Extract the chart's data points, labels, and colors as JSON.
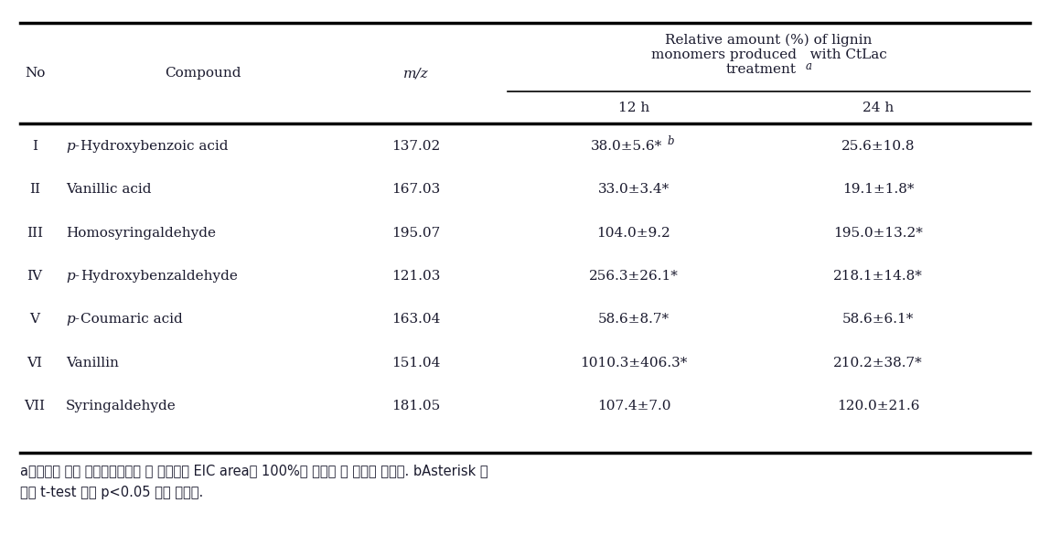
{
  "rows": [
    [
      "I",
      "p-Hydroxybenzoic acid",
      "137.02",
      "38.0±5.6*",
      "b",
      "25.6±10.8"
    ],
    [
      "II",
      "Vanillic acid",
      "167.03",
      "33.0±3.4*",
      "",
      "19.1±1.8*"
    ],
    [
      "III",
      "Homosyringaldehyde",
      "195.07",
      "104.0±9.2",
      "",
      "195.0±13.2*"
    ],
    [
      "IV",
      "p-Hydroxybenzaldehyde",
      "121.03",
      "256.3±26.1*",
      "",
      "218.1±14.8*"
    ],
    [
      "V",
      "p-Coumaric acid",
      "163.04",
      "58.6±8.7*",
      "",
      "58.6±6.1*"
    ],
    [
      "VI",
      "Vanillin",
      "151.04",
      "1010.3±406.3*",
      "",
      "210.2±38.7*"
    ],
    [
      "VII",
      "Syringaldehyde",
      "181.05",
      "107.4±7.0",
      "",
      "120.0±21.6"
    ]
  ],
  "header_line1": "Relative amount (%) of lignin",
  "header_line2": "monomers produced   with CtLac",
  "header_line3": "treatment",
  "header_sup": "a",
  "subheader_12h": "12 h",
  "subheader_24h": "24 h",
  "col_no": "No",
  "col_compound": "Compound",
  "col_mz": "m/z",
  "footnote1": "a결과값은 효소 무싸리구에서의 각 화합물의 EIC area을 100%로 하였을 때 증감을 나타냄. bAsterisk 표",
  "footnote2": "시는 t-test 결과 p<0.05 값을 나타냄.",
  "bg_color": "#ffffff",
  "text_color": "#1a1a2e",
  "line_color": "#000000",
  "fs": 11.0,
  "fs_small": 8.5,
  "fs_footnote": 10.5
}
